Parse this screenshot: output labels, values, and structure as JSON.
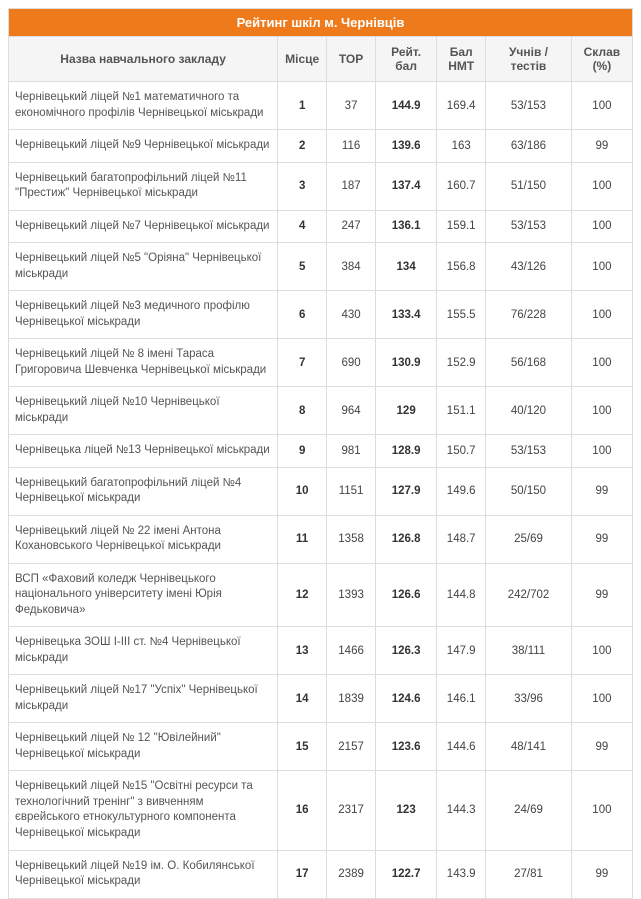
{
  "title": "Рейтинг шкіл м. Чернівців",
  "columns": {
    "name": "Назва навчального закладу",
    "place": "Місце",
    "top": "ТОР",
    "score": "Рейт. бал",
    "nmt": "Бал НМТ",
    "tests": "Учнів / тестів",
    "pass": "Склав (%)"
  },
  "rows": [
    {
      "name": "Чернівецький ліцей №1 математичного та економічного профілів Чернівецької міськради",
      "place": "1",
      "top": "37",
      "score": "144.9",
      "nmt": "169.4",
      "tests": "53/153",
      "pass": "100"
    },
    {
      "name": "Чернівецький ліцей №9 Чернівецької міськради",
      "place": "2",
      "top": "116",
      "score": "139.6",
      "nmt": "163",
      "tests": "63/186",
      "pass": "99"
    },
    {
      "name": "Чернівецький багатопрофільний ліцей №11 \"Престиж\" Чернівецької міськради",
      "place": "3",
      "top": "187",
      "score": "137.4",
      "nmt": "160.7",
      "tests": "51/150",
      "pass": "100"
    },
    {
      "name": "Чернівецький ліцей №7 Чернівецької міськради",
      "place": "4",
      "top": "247",
      "score": "136.1",
      "nmt": "159.1",
      "tests": "53/153",
      "pass": "100"
    },
    {
      "name": "Чернівецький ліцей №5 \"Оріяна\" Чернівецької міськради",
      "place": "5",
      "top": "384",
      "score": "134",
      "nmt": "156.8",
      "tests": "43/126",
      "pass": "100"
    },
    {
      "name": "Чернівецький ліцей №3 медичного профілю Чернівецької міськради",
      "place": "6",
      "top": "430",
      "score": "133.4",
      "nmt": "155.5",
      "tests": "76/228",
      "pass": "100"
    },
    {
      "name": "Чернівецький ліцей № 8 імені Тараса Григоровича Шевченка Чернівецької міськради",
      "place": "7",
      "top": "690",
      "score": "130.9",
      "nmt": "152.9",
      "tests": "56/168",
      "pass": "100"
    },
    {
      "name": "Чернівецький ліцей №10 Чернівецької міськради",
      "place": "8",
      "top": "964",
      "score": "129",
      "nmt": "151.1",
      "tests": "40/120",
      "pass": "100"
    },
    {
      "name": "Чернівецька ліцей №13 Чернівецької міськради",
      "place": "9",
      "top": "981",
      "score": "128.9",
      "nmt": "150.7",
      "tests": "53/153",
      "pass": "100"
    },
    {
      "name": "Чернівецький багатопрофільний ліцей №4 Чернівецької міськради",
      "place": "10",
      "top": "1151",
      "score": "127.9",
      "nmt": "149.6",
      "tests": "50/150",
      "pass": "99"
    },
    {
      "name": "Чернівецький ліцей № 22 імені Антона Кохановського Чернівецької міськради",
      "place": "11",
      "top": "1358",
      "score": "126.8",
      "nmt": "148.7",
      "tests": "25/69",
      "pass": "99"
    },
    {
      "name": "ВСП «Фаховий коледж Чернівецького національного університету імені Юрія Федьковича»",
      "place": "12",
      "top": "1393",
      "score": "126.6",
      "nmt": "144.8",
      "tests": "242/702",
      "pass": "99"
    },
    {
      "name": "Чернівецька ЗОШ І-ІІІ ст. №4 Чернівецької міськради",
      "place": "13",
      "top": "1466",
      "score": "126.3",
      "nmt": "147.9",
      "tests": "38/111",
      "pass": "100"
    },
    {
      "name": "Чернівецький ліцей №17 \"Успіх\" Чернівецької міськради",
      "place": "14",
      "top": "1839",
      "score": "124.6",
      "nmt": "146.1",
      "tests": "33/96",
      "pass": "100"
    },
    {
      "name": "Чернівецький ліцей № 12 \"Ювілейний\" Чернівецької міськради",
      "place": "15",
      "top": "2157",
      "score": "123.6",
      "nmt": "144.6",
      "tests": "48/141",
      "pass": "99"
    },
    {
      "name": "Чернівецький ліцей №15 \"Освітні ресурси та технологічний тренінг\" з вивченням єврейського етнокультурного компонента Чернівецької міськради",
      "place": "16",
      "top": "2317",
      "score": "123",
      "nmt": "144.3",
      "tests": "24/69",
      "pass": "100"
    },
    {
      "name": "Чернівецький ліцей №19 ім. О. Кобилянської Чернівецької міськради",
      "place": "17",
      "top": "2389",
      "score": "122.7",
      "nmt": "143.9",
      "tests": "27/81",
      "pass": "99"
    }
  ]
}
